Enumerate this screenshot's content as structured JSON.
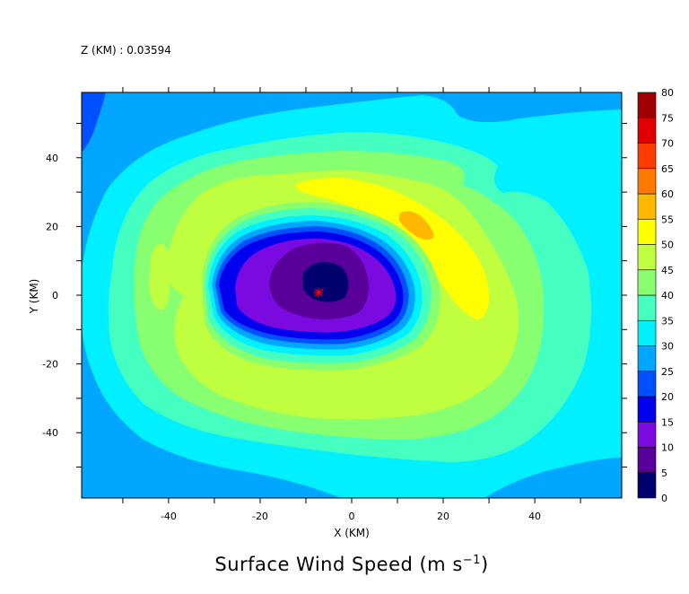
{
  "header": {
    "level_label": "Z (KM) : 0.03594"
  },
  "chart_data": {
    "type": "contour",
    "title_prefix": "Surface Wind Speed (m s",
    "title_sup": "−1",
    "title_suffix": ")",
    "xlabel": "X (KM)",
    "ylabel": "Y (KM)",
    "xlim": [
      -59,
      59
    ],
    "ylim": [
      -59,
      59
    ],
    "x_ticks": [
      -40,
      -20,
      0,
      20,
      40
    ],
    "y_ticks": [
      -40,
      -20,
      0,
      20,
      40
    ],
    "contour_levels": [
      0,
      5,
      10,
      15,
      20,
      25,
      30,
      35,
      40,
      45,
      50,
      55,
      60,
      65,
      70,
      75,
      80
    ],
    "level_colors": [
      "#00006e",
      "#5a009a",
      "#7a0ae0",
      "#0000ee",
      "#0050ff",
      "#00a6ff",
      "#00f0ff",
      "#44ffc0",
      "#88ff70",
      "#c0ff40",
      "#ffff00",
      "#ffb800",
      "#ff7800",
      "#ff3c00",
      "#e00000",
      "#a00000"
    ],
    "center_marker": {
      "x": -7,
      "y": 1,
      "symbol": "*",
      "color": "#ff0000"
    },
    "field": {
      "description_free": true,
      "vortex_center": [
        -5,
        3
      ],
      "max_wind_region": [
        14,
        22
      ]
    }
  }
}
